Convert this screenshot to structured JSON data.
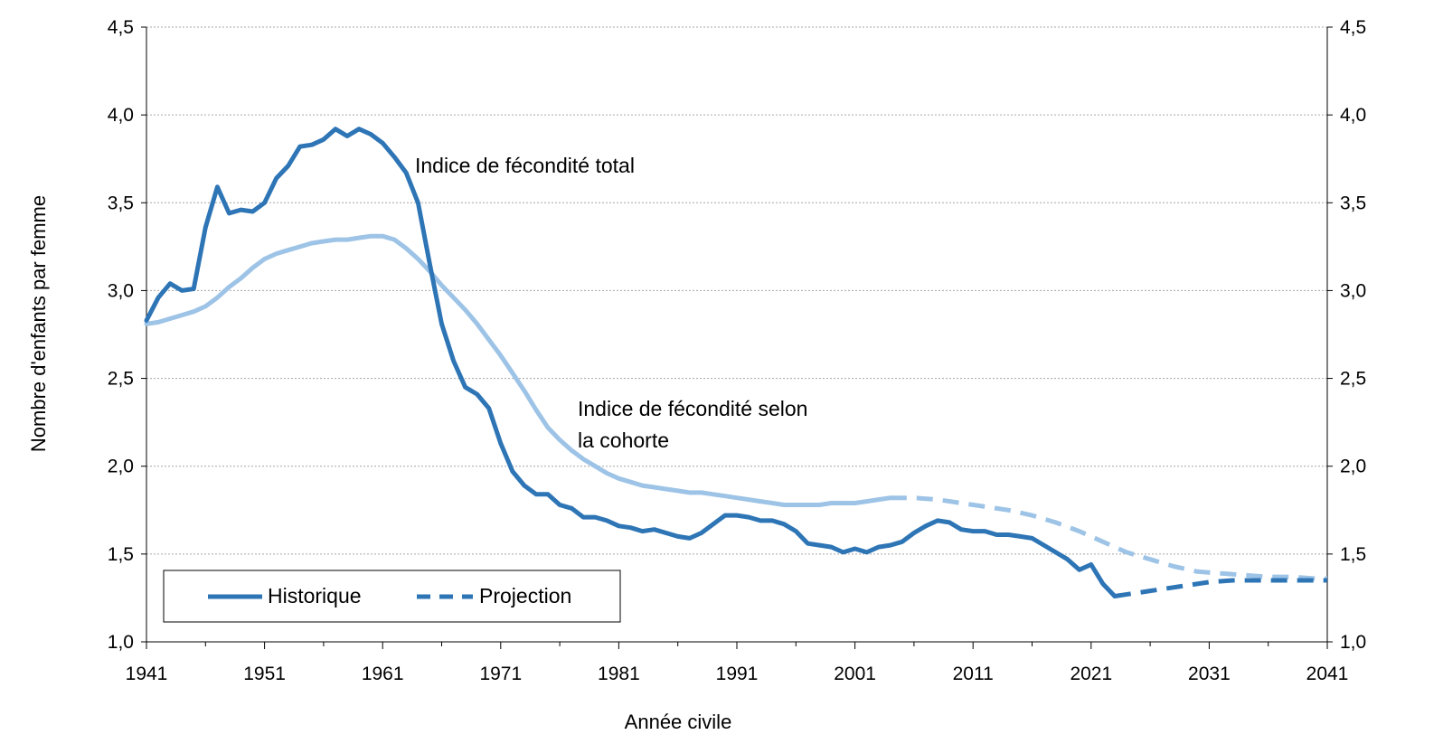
{
  "chart_data": {
    "type": "line",
    "title": "",
    "xlabel": "Année civile",
    "ylabel": "Nombre d'enfants par femme",
    "xlim": [
      1941,
      2041
    ],
    "ylim": [
      1.0,
      4.5
    ],
    "x_ticks": [
      1941,
      1951,
      1961,
      1971,
      1981,
      1991,
      2001,
      2011,
      2021,
      2031,
      2041
    ],
    "y_ticks": [
      1.0,
      1.5,
      2.0,
      2.5,
      3.0,
      3.5,
      4.0,
      4.5
    ],
    "y_tick_labels": [
      "1,0",
      "1,5",
      "2,0",
      "2,5",
      "3,0",
      "3,5",
      "4,0",
      "4,5"
    ],
    "grid": "horizontal dotted",
    "legend": {
      "placement": "bottom-left",
      "entries": [
        {
          "label": "Historique",
          "style": "solid"
        },
        {
          "label": "Projection",
          "style": "dashed"
        }
      ]
    },
    "annotations": [
      {
        "text": "Indice de fécondité total",
        "series": "tfr"
      },
      {
        "text": "Indice de fécondité selon",
        "series": "cohort"
      },
      {
        "text": "la cohorte",
        "series": "cohort"
      }
    ],
    "series": [
      {
        "name": "Indice de fécondité total",
        "key": "tfr",
        "color": "#2e75b6",
        "historique": {
          "x": [
            1941,
            1942,
            1943,
            1944,
            1945,
            1946,
            1947,
            1948,
            1949,
            1950,
            1951,
            1952,
            1953,
            1954,
            1955,
            1956,
            1957,
            1958,
            1959,
            1960,
            1961,
            1962,
            1963,
            1964,
            1965,
            1966,
            1967,
            1968,
            1969,
            1970,
            1971,
            1972,
            1973,
            1974,
            1975,
            1976,
            1977,
            1978,
            1979,
            1980,
            1981,
            1982,
            1983,
            1984,
            1985,
            1986,
            1987,
            1988,
            1989,
            1990,
            1991,
            1992,
            1993,
            1994,
            1995,
            1996,
            1997,
            1998,
            1999,
            2000,
            2001,
            2002,
            2003,
            2004,
            2005,
            2006,
            2007,
            2008,
            2009,
            2010,
            2011,
            2012,
            2013,
            2014,
            2015,
            2016,
            2017,
            2018,
            2019,
            2020,
            2021,
            2022,
            2023
          ],
          "y": [
            2.83,
            2.96,
            3.04,
            3.0,
            3.01,
            3.36,
            3.59,
            3.44,
            3.46,
            3.45,
            3.5,
            3.64,
            3.71,
            3.82,
            3.83,
            3.86,
            3.92,
            3.88,
            3.92,
            3.89,
            3.84,
            3.76,
            3.67,
            3.5,
            3.15,
            2.81,
            2.6,
            2.45,
            2.41,
            2.33,
            2.13,
            1.97,
            1.89,
            1.84,
            1.84,
            1.78,
            1.76,
            1.71,
            1.71,
            1.69,
            1.66,
            1.65,
            1.63,
            1.64,
            1.62,
            1.6,
            1.59,
            1.62,
            1.67,
            1.72,
            1.72,
            1.71,
            1.69,
            1.69,
            1.67,
            1.63,
            1.56,
            1.55,
            1.54,
            1.51,
            1.53,
            1.51,
            1.54,
            1.55,
            1.57,
            1.62,
            1.66,
            1.69,
            1.68,
            1.64,
            1.63,
            1.63,
            1.61,
            1.61,
            1.6,
            1.59,
            1.55,
            1.51,
            1.47,
            1.41,
            1.44,
            1.33,
            1.26
          ]
        },
        "projection": {
          "x": [
            2023,
            2025,
            2027,
            2029,
            2031,
            2033,
            2035,
            2037,
            2039,
            2041
          ],
          "y": [
            1.26,
            1.28,
            1.3,
            1.32,
            1.34,
            1.35,
            1.35,
            1.35,
            1.35,
            1.35
          ]
        }
      },
      {
        "name": "Indice de fécondité selon la cohorte",
        "key": "cohort",
        "color": "#9dc3e6",
        "historique": {
          "x": [
            1941,
            1942,
            1943,
            1944,
            1945,
            1946,
            1947,
            1948,
            1949,
            1950,
            1951,
            1952,
            1953,
            1954,
            1955,
            1956,
            1957,
            1958,
            1959,
            1960,
            1961,
            1962,
            1963,
            1964,
            1965,
            1966,
            1967,
            1968,
            1969,
            1970,
            1971,
            1972,
            1973,
            1974,
            1975,
            1976,
            1977,
            1978,
            1979,
            1980,
            1981,
            1982,
            1983,
            1984,
            1985,
            1986,
            1987,
            1988,
            1989,
            1990,
            1991,
            1992,
            1993,
            1994,
            1995,
            1996,
            1997,
            1998,
            1999,
            2000,
            2001,
            2002,
            2003,
            2004
          ],
          "y": [
            2.81,
            2.82,
            2.84,
            2.86,
            2.88,
            2.91,
            2.96,
            3.02,
            3.07,
            3.13,
            3.18,
            3.21,
            3.23,
            3.25,
            3.27,
            3.28,
            3.29,
            3.29,
            3.3,
            3.31,
            3.31,
            3.29,
            3.24,
            3.18,
            3.11,
            3.03,
            2.96,
            2.89,
            2.81,
            2.72,
            2.63,
            2.53,
            2.43,
            2.32,
            2.22,
            2.15,
            2.09,
            2.04,
            2.0,
            1.96,
            1.93,
            1.91,
            1.89,
            1.88,
            1.87,
            1.86,
            1.85,
            1.85,
            1.84,
            1.83,
            1.82,
            1.81,
            1.8,
            1.79,
            1.78,
            1.78,
            1.78,
            1.78,
            1.79,
            1.79,
            1.79,
            1.8,
            1.81,
            1.82
          ]
        },
        "projection": {
          "x": [
            2004,
            2006,
            2008,
            2010,
            2012,
            2014,
            2016,
            2018,
            2020,
            2022,
            2024,
            2026,
            2028,
            2030,
            2032,
            2034,
            2036,
            2038,
            2040,
            2041
          ],
          "y": [
            1.82,
            1.82,
            1.81,
            1.79,
            1.77,
            1.75,
            1.72,
            1.68,
            1.63,
            1.57,
            1.51,
            1.47,
            1.43,
            1.4,
            1.39,
            1.38,
            1.37,
            1.37,
            1.36,
            1.36
          ]
        }
      }
    ]
  }
}
